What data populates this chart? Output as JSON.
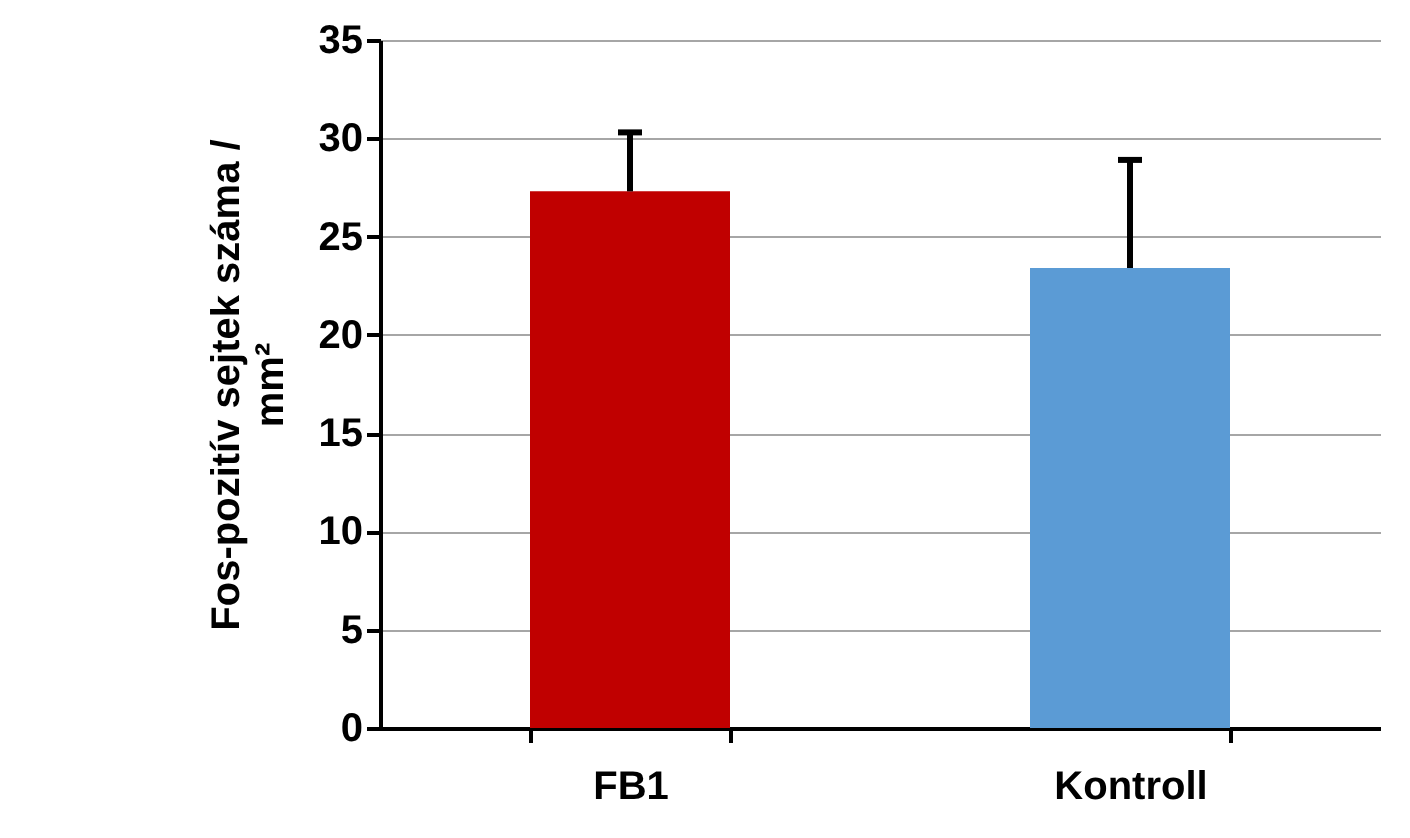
{
  "chart_data": {
    "type": "bar",
    "ylabel": "Fos-pozitív sejtek száma / mm²",
    "categories": [
      "FB1",
      "Kontroll"
    ],
    "values": [
      27.3,
      23.4
    ],
    "colors": [
      "#c00000",
      "#5b9bd5"
    ],
    "errors": [
      [
        27.3,
        30.3
      ],
      [
        23.4,
        28.9
      ]
    ],
    "ylim": [
      0,
      35
    ],
    "yticks": [
      0,
      5,
      10,
      15,
      20,
      25,
      30,
      35
    ],
    "grid": "y"
  }
}
